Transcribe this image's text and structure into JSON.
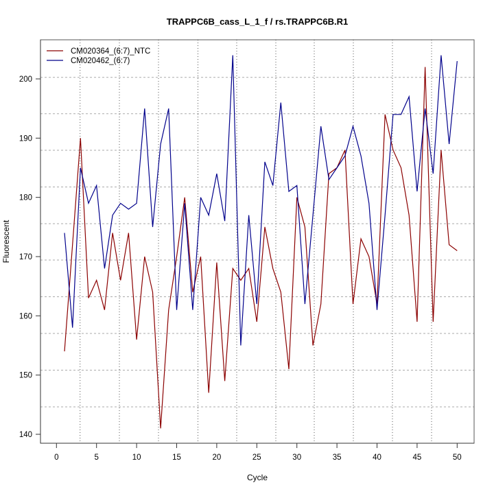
{
  "chart_data": {
    "type": "line",
    "title": "TRAPPC6B_cass_L_1_f / rs.TRAPPC6B.R1",
    "xlabel": "Cycle",
    "ylabel": "Fluorescent",
    "xlim": [
      -2,
      52
    ],
    "ylim": [
      138,
      208
    ],
    "x_ticks": [
      0,
      5,
      10,
      15,
      20,
      25,
      30,
      35,
      40,
      45,
      50
    ],
    "y_ticks": [
      140,
      150,
      160,
      170,
      180,
      190,
      200
    ],
    "grid": true,
    "legend_position": "top-left",
    "x": [
      1,
      2,
      3,
      4,
      5,
      6,
      7,
      8,
      9,
      10,
      11,
      12,
      13,
      14,
      15,
      16,
      17,
      18,
      19,
      20,
      21,
      22,
      23,
      24,
      25,
      26,
      27,
      28,
      29,
      30,
      31,
      32,
      33,
      34,
      35,
      36,
      37,
      38,
      39,
      40,
      41,
      42,
      43,
      44,
      45,
      46,
      47,
      48,
      49,
      50
    ],
    "series": [
      {
        "name": "CM020364_(6:7)_NTC",
        "color": "#8b0000",
        "values": [
          154,
          172,
          190,
          163,
          166,
          161,
          174,
          166,
          174,
          156,
          170,
          164,
          141,
          161,
          170,
          180,
          164,
          170,
          147,
          169,
          149,
          168,
          166,
          168,
          159,
          175,
          168,
          164,
          151,
          180,
          175,
          155,
          162,
          184,
          185,
          188,
          162,
          173,
          170,
          162,
          194,
          188,
          185,
          177,
          159,
          202,
          159,
          188,
          172,
          171
        ]
      },
      {
        "name": "CM020462_(6:7)",
        "color": "#00008b",
        "values": [
          174,
          158,
          185,
          179,
          182,
          168,
          177,
          179,
          178,
          179,
          195,
          175,
          189,
          195,
          161,
          179,
          161,
          180,
          177,
          184,
          176,
          204,
          155,
          177,
          162,
          186,
          182,
          196,
          181,
          182,
          162,
          177,
          192,
          183,
          185,
          187,
          192,
          187,
          179,
          161,
          177,
          194,
          194,
          197,
          181,
          195,
          184,
          204,
          189,
          203
        ]
      }
    ]
  }
}
